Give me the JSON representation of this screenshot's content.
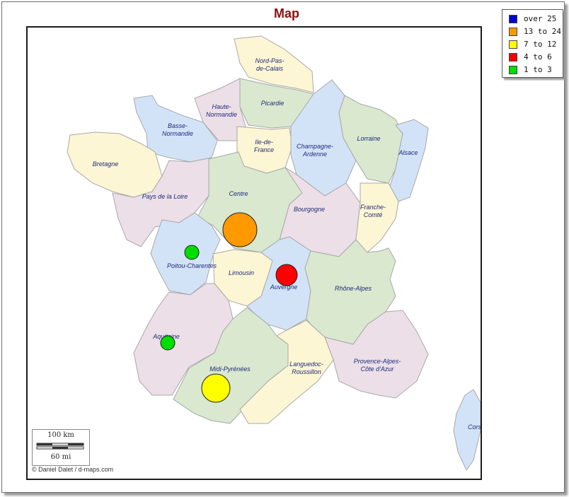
{
  "title": "Map",
  "legend": [
    {
      "label": "over 25",
      "color": "#0000cc"
    },
    {
      "label": "13 to 24",
      "color": "#ff9900"
    },
    {
      "label": "7 to 12",
      "color": "#ffff00"
    },
    {
      "label": "4 to 6",
      "color": "#ff0000"
    },
    {
      "label": "1 to 3",
      "color": "#00dd00"
    }
  ],
  "regions": [
    {
      "name": "Nord-Pas-de-Calais",
      "label_lines": [
        "Nord-Pas-",
        "de-Calais"
      ],
      "color": "#fdf6d4"
    },
    {
      "name": "Picardie",
      "label_lines": [
        "Picardie"
      ],
      "color": "#d9e8cf"
    },
    {
      "name": "Haute-Normandie",
      "label_lines": [
        "Haute-",
        "Normandie"
      ],
      "color": "#ecdfe8"
    },
    {
      "name": "Basse-Normandie",
      "label_lines": [
        "Basse-",
        "Normandie"
      ],
      "color": "#d3e3f7"
    },
    {
      "name": "Ile-de-France",
      "label_lines": [
        "Ile-de-",
        "France"
      ],
      "color": "#fdf6d4"
    },
    {
      "name": "Champagne-Ardenne",
      "label_lines": [
        "Champagne-",
        "Ardenne"
      ],
      "color": "#d3e3f7"
    },
    {
      "name": "Lorraine",
      "label_lines": [
        "Lorraine"
      ],
      "color": "#d9e8cf"
    },
    {
      "name": "Alsace",
      "label_lines": [
        "Alsace"
      ],
      "color": "#d3e3f7"
    },
    {
      "name": "Bretagne",
      "label_lines": [
        "Bretagne"
      ],
      "color": "#fdf6d4"
    },
    {
      "name": "Pays de la Loire",
      "label_lines": [
        "Pays de la Loire"
      ],
      "color": "#ecdfe8"
    },
    {
      "name": "Centre",
      "label_lines": [
        "Centre"
      ],
      "color": "#d9e8cf"
    },
    {
      "name": "Bourgogne",
      "label_lines": [
        "Bourgogne"
      ],
      "color": "#ecdfe8"
    },
    {
      "name": "Franche-Comté",
      "label_lines": [
        "Franche-",
        "Comté"
      ],
      "color": "#fdf6d4"
    },
    {
      "name": "Poitou-Charentes",
      "label_lines": [
        "Poitou-Charentes"
      ],
      "color": "#d3e3f7"
    },
    {
      "name": "Limousin",
      "label_lines": [
        "Limousin"
      ],
      "color": "#fdf6d4"
    },
    {
      "name": "Auvergne",
      "label_lines": [
        "Auvergne"
      ],
      "color": "#d3e3f7"
    },
    {
      "name": "Rhône-Alpes",
      "label_lines": [
        "Rhône-Alpes"
      ],
      "color": "#d9e8cf"
    },
    {
      "name": "Aquitaine",
      "label_lines": [
        "Aquitaine"
      ],
      "color": "#ecdfe8"
    },
    {
      "name": "Midi-Pyrénées",
      "label_lines": [
        "Midi-Pyrénées"
      ],
      "color": "#d9e8cf"
    },
    {
      "name": "Languedoc-Roussillon",
      "label_lines": [
        "Languedoc-",
        "Roussillon"
      ],
      "color": "#fdf6d4"
    },
    {
      "name": "Provence-Alpes-Côte d'Azur",
      "label_lines": [
        "Provence-Alpes-",
        "Côte d'Azur"
      ],
      "color": "#ecdfe8"
    },
    {
      "name": "Corse",
      "label_lines": [
        "Corse"
      ],
      "color": "#d3e3f7"
    }
  ],
  "markers": [
    {
      "region": "Centre",
      "category": "13 to 24",
      "color": "#ff9900"
    },
    {
      "region": "Auvergne",
      "category": "4 to 6",
      "color": "#ff0000"
    },
    {
      "region": "Poitou-Charentes",
      "category": "1 to 3",
      "color": "#00dd00"
    },
    {
      "region": "Aquitaine",
      "category": "1 to 3",
      "color": "#00dd00"
    },
    {
      "region": "Midi-Pyrénées",
      "category": "7 to 12",
      "color": "#ffff00"
    }
  ],
  "scale": {
    "km": "100 km",
    "mi": "60 mi"
  },
  "credit": "© Daniel Dalet / d-maps.com"
}
